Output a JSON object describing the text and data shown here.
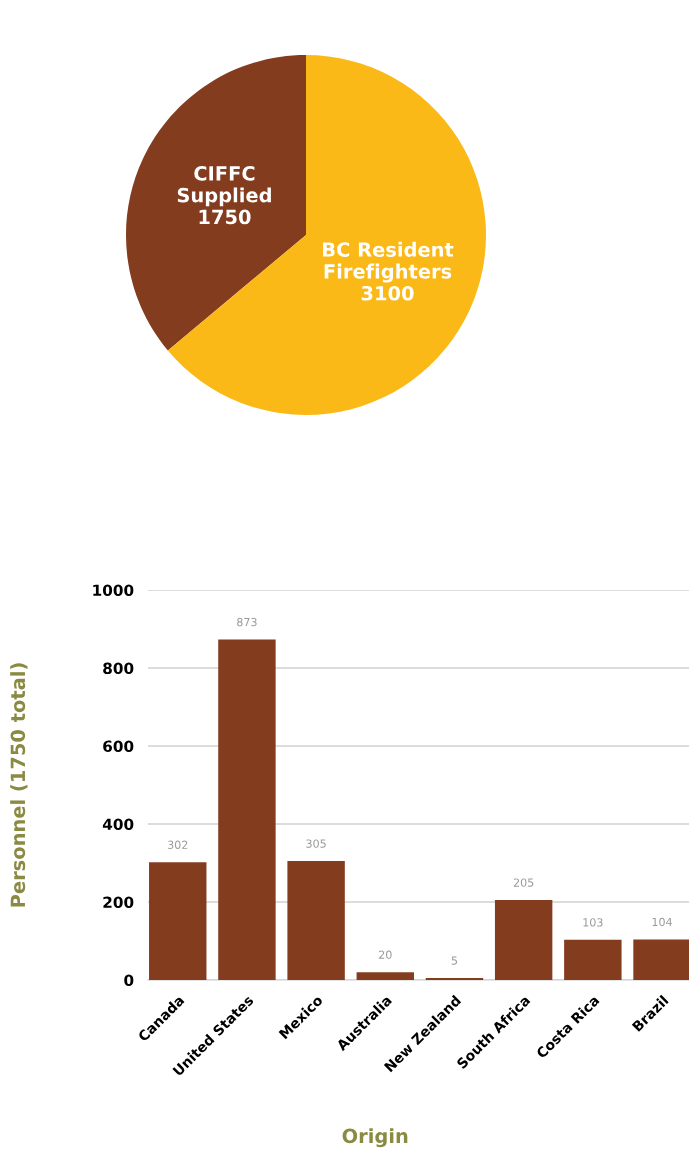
{
  "chart_data": [
    {
      "type": "pie",
      "categories": [
        "CIFFC\nSupplied",
        "BC Resident\nFirefighters"
      ],
      "values": [
        1750,
        3100
      ],
      "colors": [
        "#843c1f",
        "#fbb918"
      ],
      "data_labels": true
    },
    {
      "type": "bar",
      "xlabel": "Origin",
      "ylabel": "Personnel (1750 total)",
      "categories": [
        "Canada",
        "United States",
        "Mexico",
        "Australia",
        "New Zealand",
        "South Africa",
        "Costa Rica",
        "Brazil"
      ],
      "values": [
        302,
        873,
        305,
        20,
        5,
        205,
        103,
        104
      ],
      "color": "#843c1f",
      "ylim": [
        0,
        1000
      ],
      "yticks": [
        0,
        200,
        400,
        600,
        800,
        1000
      ],
      "grid": "y",
      "data_labels": true
    }
  ]
}
